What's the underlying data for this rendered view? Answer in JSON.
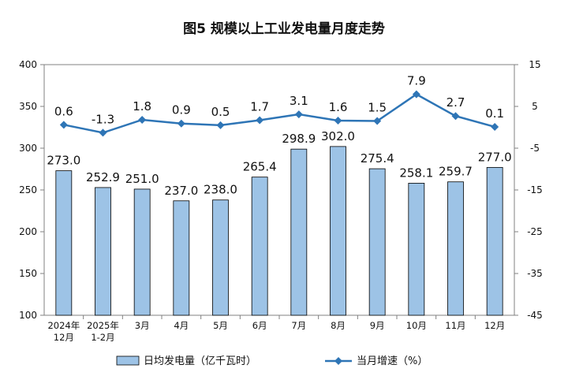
{
  "title": "图5  规模以上工业发电量月度走势",
  "chart_data": {
    "type": "bar",
    "title": "图5  规模以上工业发电量月度走势",
    "categories": [
      [
        "2024年",
        "12月"
      ],
      [
        "2025年",
        "1-2月"
      ],
      [
        "3月"
      ],
      [
        "4月"
      ],
      [
        "5月"
      ],
      [
        "6月"
      ],
      [
        "7月"
      ],
      [
        "8月"
      ],
      [
        "9月"
      ],
      [
        "10月"
      ],
      [
        "11月"
      ],
      [
        "12月"
      ]
    ],
    "series": [
      {
        "name": "日均发电量（亿千瓦时）",
        "type": "bar",
        "axis": "left",
        "color": "#9DC3E6",
        "values": [
          273.0,
          252.9,
          251.0,
          237.0,
          238.0,
          265.4,
          298.9,
          302.0,
          275.4,
          258.1,
          259.7,
          277.0
        ],
        "labels": [
          "273.0",
          "252.9",
          "251.0",
          "237.0",
          "238.0",
          "265.4",
          "298.9",
          "302.0",
          "275.4",
          "258.1",
          "259.7",
          "277.0"
        ]
      },
      {
        "name": "当月增速（%）",
        "type": "line",
        "axis": "right",
        "color": "#2E75B6",
        "values": [
          0.6,
          -1.3,
          1.8,
          0.9,
          0.5,
          1.7,
          3.1,
          1.6,
          1.5,
          7.9,
          2.7,
          0.1
        ],
        "labels": [
          "0.6",
          "-1.3",
          "1.8",
          "0.9",
          "0.5",
          "1.7",
          "3.1",
          "1.6",
          "1.5",
          "7.9",
          "2.7",
          "0.1"
        ]
      }
    ],
    "y_left": {
      "ylim": [
        100,
        400
      ],
      "ticks": [
        "100",
        "150",
        "200",
        "250",
        "300",
        "350",
        "400"
      ]
    },
    "y_right": {
      "ylim": [
        -45,
        15
      ],
      "ticks": [
        "-45",
        "-35",
        "-25",
        "-15",
        "-5",
        "5",
        "15"
      ]
    },
    "grid": false,
    "legend": {
      "position": "bottom",
      "items": [
        "日均发电量（亿千瓦时）",
        "当月增速（%）"
      ]
    }
  }
}
